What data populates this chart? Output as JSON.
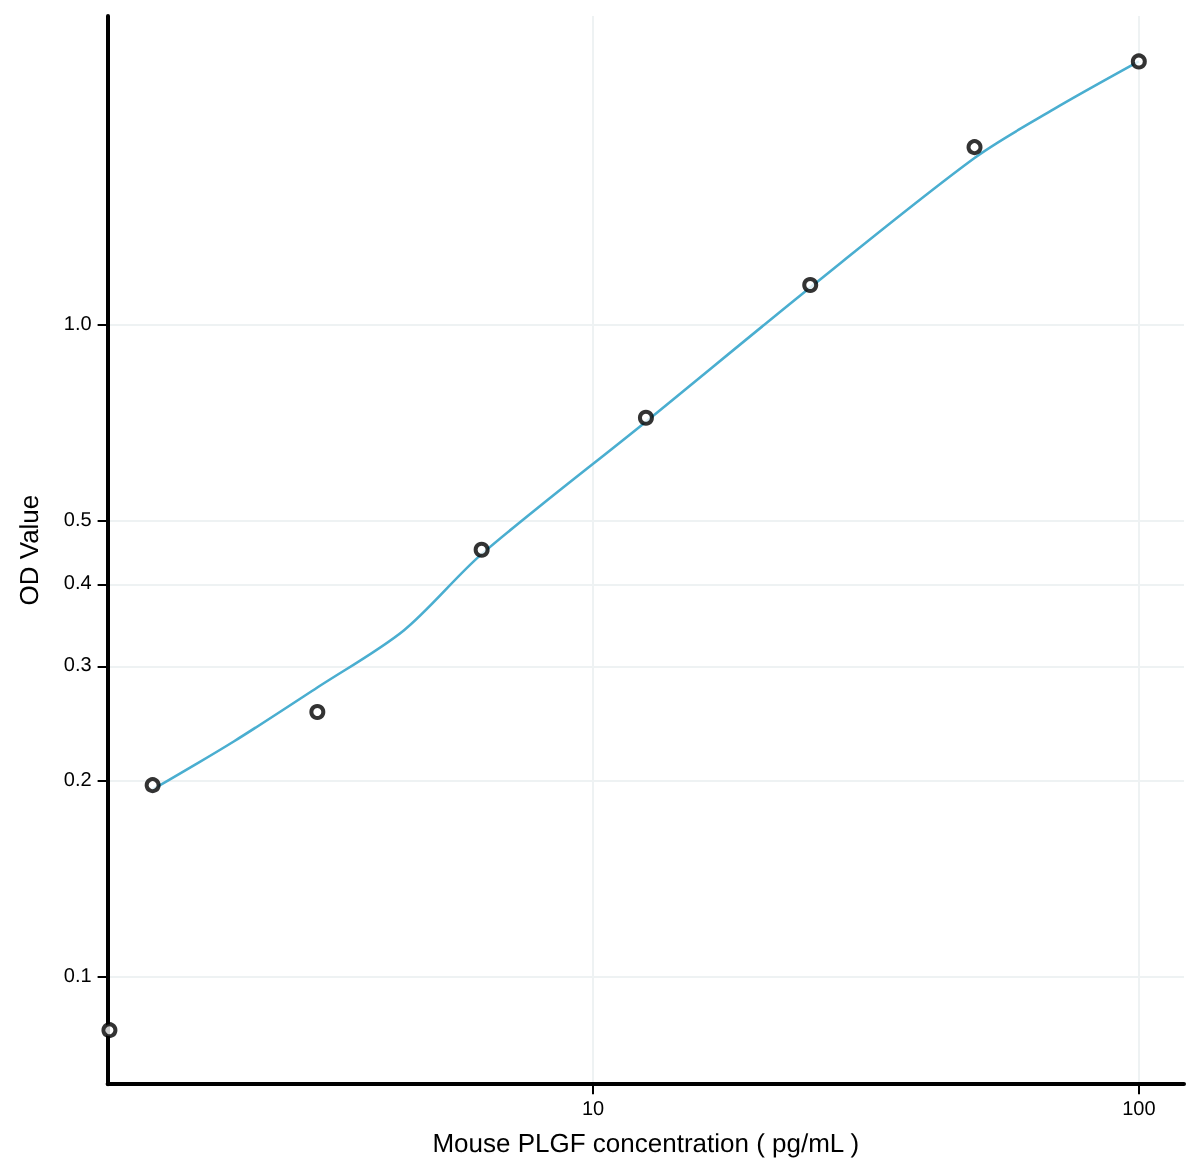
{
  "chart_data": {
    "type": "scatter",
    "xlabel": "Mouse PLGF concentration ( pg/mL )",
    "ylabel": "OD Value",
    "log": "xy",
    "xlim": [
      1.29,
      121
    ],
    "ylim": [
      0.0686,
      2.97
    ],
    "xticks": [
      10,
      100
    ],
    "yticks": [
      0.1,
      0.2,
      0.3,
      0.4,
      0.5,
      {
        "value": 1,
        "label": "1.0"
      }
    ],
    "grid": true,
    "marker": "circle",
    "series": [
      {
        "color": "#000000",
        "x": [
          1.3,
          1.56,
          3.125,
          6.25,
          12.5,
          25,
          50,
          100
        ],
        "values": [
          0.083,
          0.197,
          0.255,
          0.452,
          0.72,
          1.15,
          1.87,
          2.53
        ]
      },
      {
        "type": "line",
        "color": "#4aaed0",
        "marker": "none",
        "x": [
          1.56,
          2.2,
          3.125,
          4.5,
          6.25,
          12.5,
          25,
          50,
          70,
          100
        ],
        "values": [
          0.194,
          0.23,
          0.278,
          0.34,
          0.445,
          0.71,
          1.14,
          1.8,
          2.14,
          2.53
        ]
      }
    ]
  }
}
